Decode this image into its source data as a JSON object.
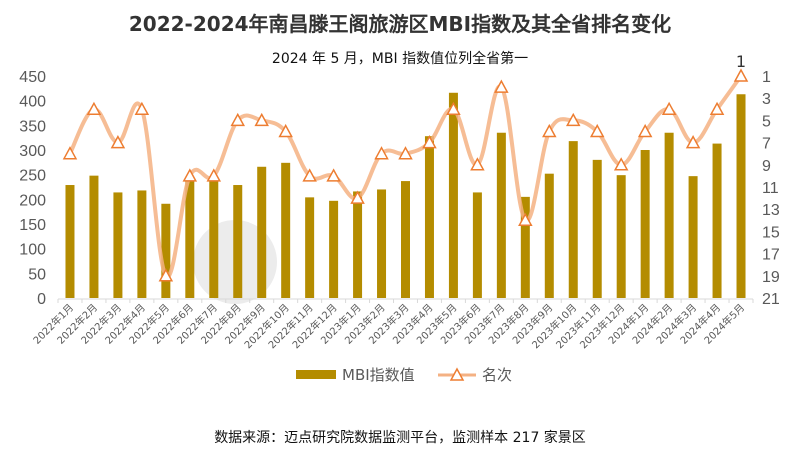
{
  "chart_data": {
    "type": "bar+line",
    "title": "2022-2024年南昌滕王阁旅游区MBI指数及其全省排名变化",
    "subtitle": "2024 年 5 月，MBI 指数值位列全省第一",
    "source": "数据来源：迈点研究院数据监测平台，监测样本 217 家景区",
    "categories": [
      "2022年1月",
      "2022年2月",
      "2022年3月",
      "2022年4月",
      "2022年5月",
      "2022年6月",
      "2022年7月",
      "2022年8月",
      "2022年9月",
      "2022年10月",
      "2022年11月",
      "2022年12月",
      "2023年1月",
      "2023年2月",
      "2023年3月",
      "2023年4月",
      "2023年5月",
      "2023年6月",
      "2023年7月",
      "2023年8月",
      "2023年9月",
      "2023年10月",
      "2023年11月",
      "2023年12月",
      "2024年1月",
      "2024年2月",
      "2024年3月",
      "2024年4月",
      "2024年5月"
    ],
    "series": [
      {
        "name": "MBI指数值",
        "type": "bar",
        "axis": "left",
        "color": "#b48c00",
        "values": [
          229,
          248,
          214,
          218,
          191,
          241,
          240,
          229,
          266,
          274,
          204,
          197,
          216,
          220,
          237,
          328,
          416,
          214,
          335,
          205,
          252,
          318,
          280,
          249,
          300,
          335,
          247,
          313,
          413
        ]
      },
      {
        "name": "名次",
        "type": "line",
        "axis": "right",
        "color": "#f4b183",
        "marker_color": "#ed7d31",
        "values": [
          8,
          4,
          7,
          4,
          19,
          10,
          10,
          5,
          5,
          6,
          10,
          10,
          12,
          8,
          8,
          7,
          4,
          9,
          2,
          14,
          6,
          5,
          6,
          9,
          6,
          4,
          7,
          4,
          1
        ]
      }
    ],
    "left_axis": {
      "ylim": [
        0,
        450
      ],
      "ticks": [
        "0",
        "50",
        "100",
        "150",
        "200",
        "250",
        "300",
        "350",
        "400",
        "450"
      ]
    },
    "right_axis": {
      "ylim": [
        1,
        21
      ],
      "reversed": true,
      "ticks": [
        "1",
        "3",
        "5",
        "7",
        "9",
        "11",
        "13",
        "15",
        "17",
        "19",
        "21"
      ]
    },
    "annotation": "1",
    "legend": {
      "position": "bottom",
      "entries": [
        "MBI指数值",
        "名次"
      ]
    },
    "watermark": "迈点研究院 MEADIN ACADEMY"
  }
}
